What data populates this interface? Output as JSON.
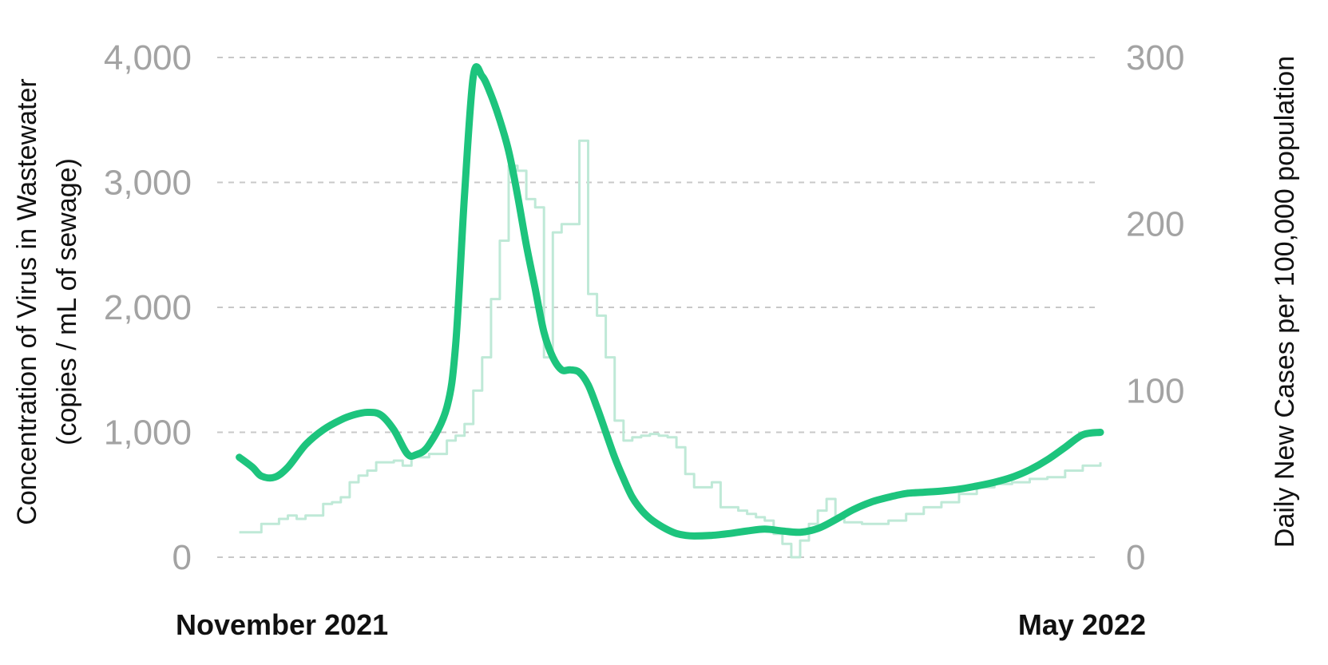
{
  "chart_data": {
    "type": "line",
    "x_start": "November 2021",
    "x_end": "May 2022",
    "xlim": [
      0,
      100
    ],
    "xtick_labels": [
      "November 2021",
      "May 2022"
    ],
    "ylabel_left": [
      "Concentration of Virus in Wastewater",
      "(copies / mL of sewage)"
    ],
    "ylabel_right": "Daily New Cases per 100,000 population",
    "ylim_left": [
      0,
      4000
    ],
    "ylim_right": [
      0,
      300
    ],
    "yticks_left": [
      "0",
      "1,000",
      "2,000",
      "3,000",
      "4,000"
    ],
    "yticks_right": [
      "0",
      "100",
      "200",
      "300"
    ],
    "grid": "horizontal dashed",
    "series": [
      {
        "role": "wastewater",
        "axis": "left",
        "color": "#1dc47d",
        "x": [
          2.5,
          4,
          5,
          6.5,
          8,
          10,
          12,
          14,
          15.5,
          17,
          18.5,
          20,
          21.5,
          22.5,
          24,
          26,
          27,
          28,
          29,
          30,
          31,
          32,
          33,
          34,
          35,
          36,
          37,
          38,
          39,
          40,
          41,
          42,
          43,
          44,
          45,
          46,
          47,
          48,
          49,
          50,
          51,
          52,
          53,
          54,
          56,
          58,
          60,
          62,
          64,
          66,
          68,
          70,
          72,
          74,
          76,
          78,
          80,
          82,
          84,
          86,
          88,
          90,
          92,
          94,
          96,
          98,
          100
        ],
        "y": [
          800,
          720,
          650,
          640,
          720,
          900,
          1020,
          1100,
          1140,
          1160,
          1140,
          1020,
          830,
          820,
          900,
          1200,
          1700,
          2900,
          3850,
          3850,
          3700,
          3500,
          3250,
          2900,
          2500,
          2150,
          1800,
          1600,
          1500,
          1500,
          1480,
          1380,
          1200,
          1000,
          800,
          630,
          480,
          380,
          310,
          260,
          220,
          190,
          175,
          170,
          175,
          190,
          210,
          225,
          210,
          200,
          230,
          300,
          380,
          440,
          480,
          510,
          520,
          530,
          545,
          570,
          600,
          640,
          700,
          780,
          880,
          980,
          1000
        ]
      },
      {
        "role": "daily-cases",
        "axis": "right",
        "color": "#bfe9d7",
        "x": [
          2.5,
          4,
          5,
          6,
          7,
          8,
          9,
          10,
          11,
          12,
          13,
          14,
          15,
          16,
          17,
          18,
          19,
          20,
          21,
          22,
          23,
          24,
          25,
          26,
          27,
          28,
          29,
          30,
          31,
          32,
          33,
          34,
          35,
          36,
          37,
          38,
          39,
          40,
          41,
          42,
          43,
          44,
          45,
          46,
          47,
          48,
          49,
          50,
          51,
          52,
          53,
          54,
          55,
          56,
          57,
          58,
          59,
          60,
          61,
          62,
          63,
          64,
          65,
          66,
          67,
          68,
          69,
          70,
          71,
          72,
          73,
          74,
          75,
          76,
          78,
          80,
          82,
          84,
          86,
          88,
          90,
          92,
          94,
          96,
          98,
          100
        ],
        "y": [
          15,
          15,
          20,
          20,
          23,
          25,
          23,
          25,
          25,
          32,
          33,
          36,
          45,
          49,
          52,
          57,
          57,
          58,
          55,
          60,
          60,
          62,
          62,
          70,
          73,
          80,
          100,
          120,
          155,
          190,
          235,
          232,
          215,
          210,
          120,
          195,
          200,
          200,
          250,
          158,
          145,
          120,
          82,
          70,
          72,
          73,
          74,
          73,
          72,
          66,
          50,
          42,
          42,
          45,
          30,
          30,
          28,
          26,
          24,
          22,
          14,
          8,
          0,
          10,
          20,
          28,
          35,
          25,
          21,
          21,
          20,
          20,
          20,
          22,
          26,
          30,
          33,
          38,
          42,
          44,
          45,
          47,
          48,
          52,
          55,
          57
        ]
      }
    ]
  }
}
